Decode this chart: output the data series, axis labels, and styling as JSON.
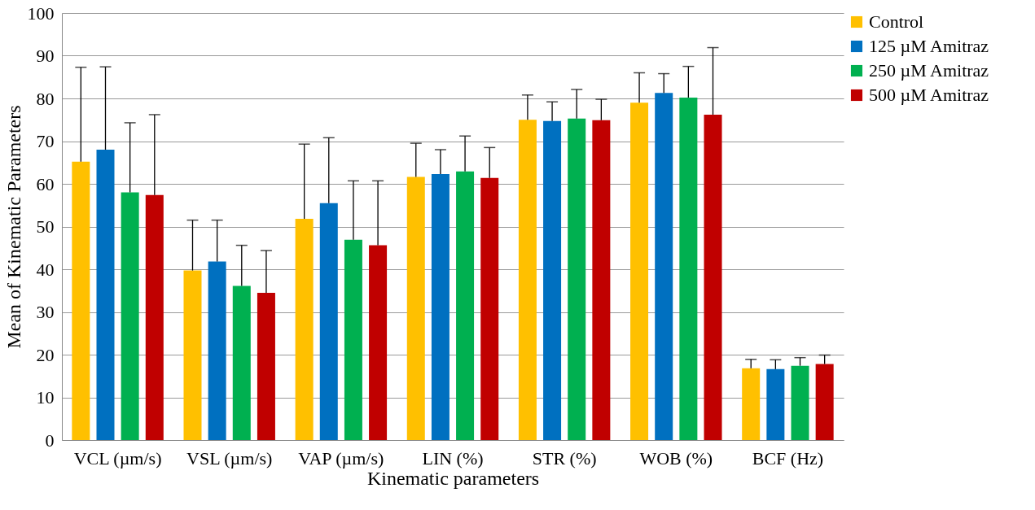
{
  "chart_data": {
    "type": "bar",
    "xlabel": "Kinematic parameters",
    "ylabel": "Mean of Kinematic Parameters",
    "categories": [
      "VCL (µm/s)",
      "VSL (µm/s)",
      "VAP (µm/s)",
      "LIN (%)",
      "STR (%)",
      "WOB (%)",
      "BCF (Hz)"
    ],
    "series": [
      {
        "name": "Control",
        "color": "#ffc000",
        "values": [
          65.2,
          39.7,
          51.8,
          61.6,
          75.0,
          79.0,
          16.8
        ],
        "errors": [
          [
            65.2,
            87.3
          ],
          [
            39.7,
            51.5
          ],
          [
            51.8,
            69.3
          ],
          [
            61.6,
            69.5
          ],
          [
            75.0,
            80.8
          ],
          [
            79.0,
            86.0
          ],
          [
            16.8,
            18.9
          ]
        ]
      },
      {
        "name": "125 µM Amitraz",
        "color": "#0070c0",
        "values": [
          68.0,
          41.8,
          55.5,
          62.3,
          74.7,
          81.3,
          16.6
        ],
        "errors": [
          [
            68.0,
            87.4
          ],
          [
            41.8,
            51.5
          ],
          [
            55.5,
            70.8
          ],
          [
            62.3,
            68.0
          ],
          [
            74.7,
            79.2
          ],
          [
            81.3,
            85.8
          ],
          [
            16.6,
            18.8
          ]
        ]
      },
      {
        "name": "250 µM Amitraz",
        "color": "#00b050",
        "values": [
          58.0,
          36.1,
          46.9,
          62.9,
          75.3,
          80.2,
          17.4
        ],
        "errors": [
          [
            58.0,
            74.3
          ],
          [
            36.1,
            45.6
          ],
          [
            46.9,
            60.7
          ],
          [
            62.9,
            71.2
          ],
          [
            75.3,
            82.1
          ],
          [
            80.2,
            87.5
          ],
          [
            17.4,
            19.3
          ]
        ]
      },
      {
        "name": "500 µM Amitraz",
        "color": "#c00000",
        "values": [
          57.4,
          34.5,
          45.6,
          61.4,
          74.9,
          76.2,
          17.8
        ],
        "errors": [
          [
            57.4,
            76.2
          ],
          [
            34.5,
            44.4
          ],
          [
            45.6,
            60.7
          ],
          [
            61.4,
            68.5
          ],
          [
            74.9,
            79.8
          ],
          [
            76.2,
            91.9
          ],
          [
            17.8,
            19.9
          ]
        ]
      }
    ],
    "ylim": [
      0,
      100
    ],
    "yticks": [
      0,
      10,
      20,
      30,
      40,
      50,
      60,
      70,
      80,
      90,
      100
    ],
    "grid": "y",
    "legend": "right"
  }
}
